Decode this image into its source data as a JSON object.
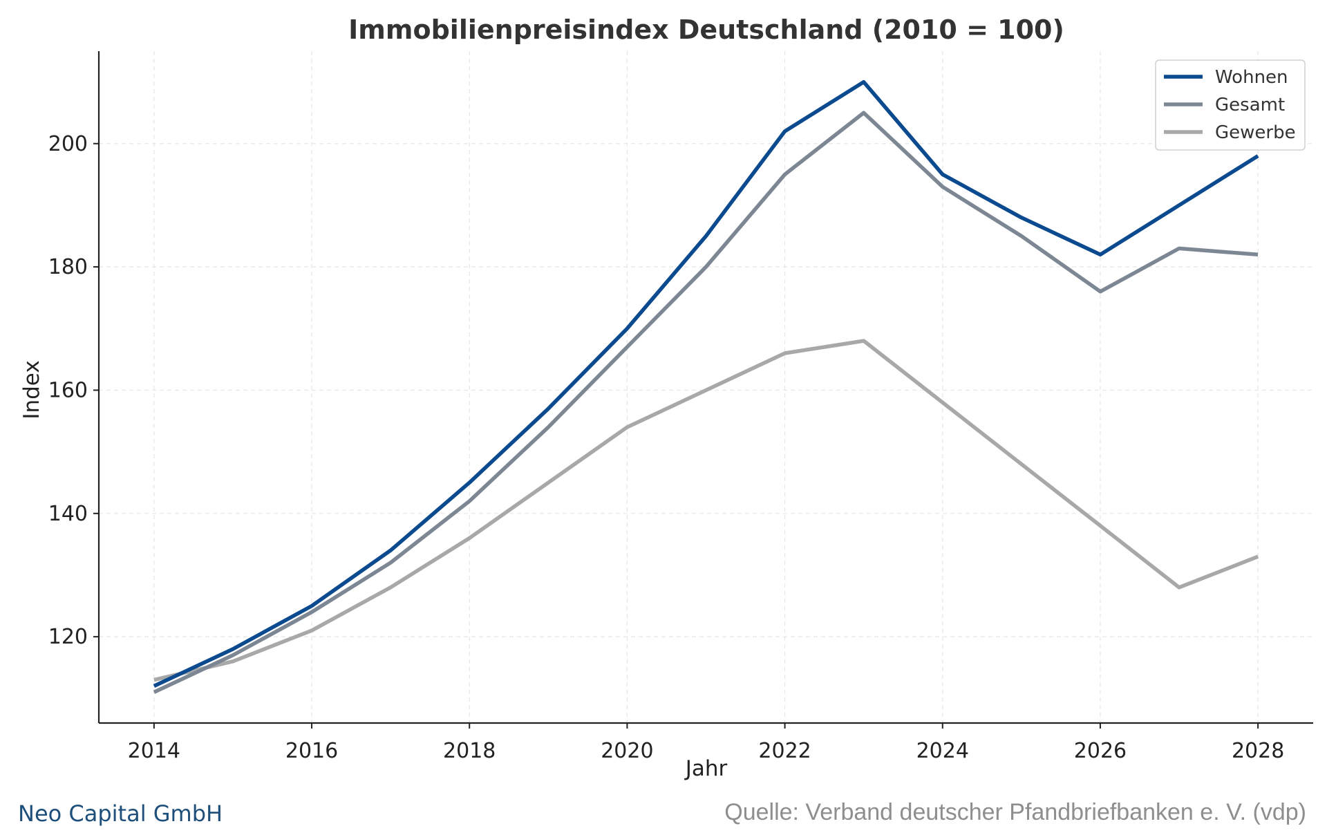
{
  "chart_data": {
    "type": "line",
    "title": "Immobilienpreisindex Deutschland (2010 = 100)",
    "xlabel": "Jahr",
    "ylabel": "Index",
    "x": [
      2014,
      2015,
      2016,
      2017,
      2018,
      2019,
      2020,
      2021,
      2022,
      2023,
      2024,
      2025,
      2026,
      2027,
      2028
    ],
    "xlim": [
      2013.3,
      2028.7
    ],
    "ylim": [
      106,
      215
    ],
    "xticks": [
      "2014",
      "2016",
      "2018",
      "2020",
      "2022",
      "2024",
      "2026",
      "2028"
    ],
    "yticks": [
      "120",
      "140",
      "160",
      "180",
      "200"
    ],
    "grid": true,
    "legend_position": "top-right",
    "series": [
      {
        "name": "Wohnen",
        "color": "#0b4a8f",
        "values": [
          112,
          118,
          125,
          134,
          145,
          157,
          170,
          185,
          202,
          210,
          195,
          188,
          182,
          190,
          198
        ]
      },
      {
        "name": "Gesamt",
        "color": "#7d8794",
        "values": [
          111,
          117,
          124,
          132,
          142,
          154,
          167,
          180,
          195,
          205,
          193,
          185,
          176,
          183,
          182
        ]
      },
      {
        "name": "Gewerbe",
        "color": "#a8a8a8",
        "values": [
          113,
          116,
          121,
          128,
          136,
          145,
          154,
          160,
          166,
          168,
          158,
          148,
          138,
          128,
          133
        ]
      }
    ]
  },
  "footer": {
    "company": "Neo Capital GmbH",
    "source": "Quelle: Verband deutscher Pfandbriefbanken e. V. (vdp)"
  }
}
